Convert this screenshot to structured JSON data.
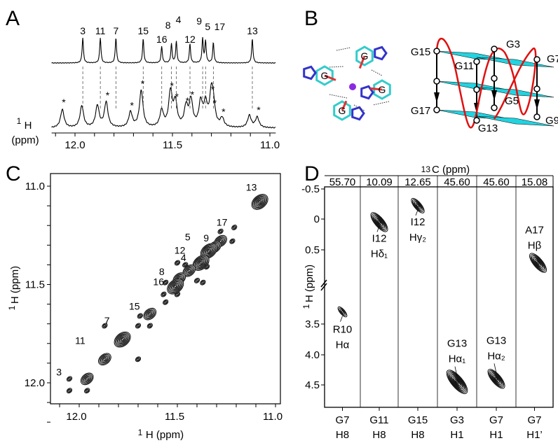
{
  "panels": {
    "a": "A",
    "b": "B",
    "c": "C",
    "d": "D"
  },
  "colors": {
    "line": "#000000",
    "helix": "#e01010",
    "plane": "#22d3e0",
    "carbon": "#33cccc",
    "nitrogen": "#3333cc",
    "oxygen": "#e03333",
    "ion": "#8a2be2"
  },
  "chart_data": [
    {
      "panel": "A",
      "type": "line",
      "xlabel_sup": "1",
      "xlabel_main": "H",
      "xlabel_unit": "(ppm)",
      "xlim": [
        12.12,
        10.97
      ],
      "xticks": [
        "12.0",
        "11.5",
        "11.0"
      ],
      "xtick_values": [
        12.0,
        11.5,
        11.0
      ],
      "top_spectrum": {
        "peaks": [
          {
            "label": "3",
            "ppm": 11.96,
            "h": 1.0
          },
          {
            "label": "11",
            "ppm": 11.87,
            "h": 1.0
          },
          {
            "label": "7",
            "ppm": 11.79,
            "h": 1.0
          },
          {
            "label": "15",
            "ppm": 11.65,
            "h": 0.95
          },
          {
            "label": "16",
            "ppm": 11.555,
            "h": 0.65
          },
          {
            "label": "8",
            "ppm": 11.505,
            "h": 0.75
          },
          {
            "label": "4",
            "ppm": 11.48,
            "h": 0.85
          },
          {
            "label": "12",
            "ppm": 11.41,
            "h": 0.75
          },
          {
            "label": "9",
            "ppm": 11.345,
            "h": 0.95
          },
          {
            "label": "5",
            "ppm": 11.33,
            "h": 0.85
          },
          {
            "label": "17",
            "ppm": 11.29,
            "h": 0.8
          },
          {
            "label": "13",
            "ppm": 11.09,
            "h": 0.95
          }
        ]
      },
      "bottom_spectrum": {
        "peaks": [
          {
            "ppm": 12.065,
            "h": 0.42,
            "star": true
          },
          {
            "ppm": 11.965,
            "h": 0.5,
            "star": false
          },
          {
            "ppm": 11.885,
            "h": 0.5,
            "star": false
          },
          {
            "ppm": 11.84,
            "h": 0.58,
            "star": true
          },
          {
            "ppm": 11.715,
            "h": 0.35,
            "star": true
          },
          {
            "ppm": 11.66,
            "h": 0.85,
            "star": true
          },
          {
            "ppm": 11.555,
            "h": 0.38,
            "star": false
          },
          {
            "ppm": 11.51,
            "h": 0.8,
            "star": true
          },
          {
            "ppm": 11.485,
            "h": 0.55,
            "star": true
          },
          {
            "ppm": 11.43,
            "h": 0.45,
            "star": true
          },
          {
            "ppm": 11.405,
            "h": 0.6,
            "star": true
          },
          {
            "ppm": 11.355,
            "h": 0.55,
            "star": false
          },
          {
            "ppm": 11.33,
            "h": 0.5,
            "star": false
          },
          {
            "ppm": 11.3,
            "h": 0.72,
            "star": true
          },
          {
            "ppm": 11.29,
            "h": 0.4,
            "star": true
          },
          {
            "ppm": 11.245,
            "h": 0.2,
            "star": true
          },
          {
            "ppm": 11.105,
            "h": 0.28,
            "star": false
          },
          {
            "ppm": 11.065,
            "h": 0.24,
            "star": true
          }
        ],
        "star_symbol": "*"
      }
    },
    {
      "panel": "C",
      "type": "scatter",
      "xlabel": "H (ppm)",
      "ylabel": "H (ppm)",
      "label_sup": "1",
      "xlim": [
        12.12,
        10.95
      ],
      "ylim": [
        10.97,
        12.21
      ],
      "xticks": [
        "12.0",
        "11.5",
        "11.0"
      ],
      "xtick_values": [
        12.0,
        11.5,
        11.0
      ],
      "yticks": [
        "11.0",
        "11.5",
        "12.0"
      ],
      "ytick_values": [
        11.0,
        11.5,
        12.0
      ],
      "diagonal_peaks": [
        {
          "label": "13",
          "x": 11.08,
          "y": 11.08,
          "size": 3
        },
        {
          "label": "17",
          "x": 11.28,
          "y": 11.28,
          "size": 2
        },
        {
          "label": "9",
          "x": 11.31,
          "y": 11.31,
          "size": 2
        },
        {
          "label": "5",
          "x": 11.34,
          "y": 11.33,
          "size": 3
        },
        {
          "label": "12",
          "x": 11.38,
          "y": 11.39,
          "size": 3
        },
        {
          "label": "4",
          "x": 11.44,
          "y": 11.43,
          "size": 2
        },
        {
          "label": "8",
          "x": 11.49,
          "y": 11.47,
          "size": 2
        },
        {
          "label": "16",
          "x": 11.51,
          "y": 11.51,
          "size": 3
        },
        {
          "label": "15",
          "x": 11.64,
          "y": 11.65,
          "size": 2
        },
        {
          "label": "7",
          "x": 11.78,
          "y": 11.78,
          "size": 3
        },
        {
          "label": "11",
          "x": 11.87,
          "y": 11.88,
          "size": 2
        },
        {
          "label": "3",
          "x": 11.96,
          "y": 11.98,
          "size": 2
        }
      ],
      "cross_peaks": [
        {
          "x": 11.87,
          "y": 11.71
        },
        {
          "x": 12.05,
          "y": 11.98
        },
        {
          "x": 12.05,
          "y": 12.04
        },
        {
          "x": 11.96,
          "y": 12.04
        },
        {
          "x": 11.7,
          "y": 11.88
        },
        {
          "x": 11.7,
          "y": 11.71
        },
        {
          "x": 11.64,
          "y": 11.71
        },
        {
          "x": 11.69,
          "y": 11.66
        },
        {
          "x": 11.56,
          "y": 11.59
        },
        {
          "x": 11.56,
          "y": 11.49
        },
        {
          "x": 11.5,
          "y": 11.55
        },
        {
          "x": 11.5,
          "y": 11.39
        },
        {
          "x": 11.46,
          "y": 11.4
        },
        {
          "x": 11.4,
          "y": 11.48
        },
        {
          "x": 11.37,
          "y": 11.49
        },
        {
          "x": 11.35,
          "y": 11.41
        },
        {
          "x": 11.22,
          "y": 11.28
        },
        {
          "x": 11.21,
          "y": 11.21
        },
        {
          "x": 11.28,
          "y": 11.23
        },
        {
          "x": 11.57,
          "y": 11.55
        }
      ]
    },
    {
      "panel": "D",
      "type": "scatter",
      "top_label_sup": "13",
      "top_label": "C (ppm)",
      "ylabel_sup": "1",
      "ylabel": "H (ppm)",
      "yticks": [
        "-0.5",
        "0",
        "0.5",
        "3.5",
        "4.0",
        "4.5"
      ],
      "columns": [
        {
          "c13": "55.70",
          "xlabel": [
            "G7",
            "H8"
          ],
          "peak_h": 3.3,
          "peak_label": [
            "R10",
            "Hα"
          ],
          "size": 1
        },
        {
          "c13": "10.09",
          "xlabel": [
            "G11",
            "H8"
          ],
          "peak_h": 0.05,
          "peak_label": [
            "I12",
            "Hδ₁"
          ],
          "size": 3
        },
        {
          "c13": "12.65",
          "xlabel": [
            "G15",
            "H8"
          ],
          "peak_h": -0.22,
          "peak_label": [
            "I12",
            "Hγ₂"
          ],
          "size": 2
        },
        {
          "c13": "45.60",
          "xlabel": [
            "G3",
            "H1"
          ],
          "peak_h": 4.45,
          "peak_label": [
            "G13",
            "Hα₁"
          ],
          "size": 4
        },
        {
          "c13": "45.60",
          "xlabel": [
            "G7",
            "H1"
          ],
          "peak_h": 4.4,
          "peak_label": [
            "G13",
            "Hα₂"
          ],
          "size": 3
        },
        {
          "c13": "15.08",
          "xlabel": [
            "G7",
            "H1’"
          ],
          "peak_h": 0.72,
          "peak_label": [
            "A17",
            "Hβ"
          ],
          "size": 3
        }
      ]
    }
  ],
  "panel_b": {
    "quartet_bases": [
      "G",
      "G",
      "G",
      "G"
    ],
    "topology_labels": [
      "G15",
      "G3",
      "G7",
      "G11",
      "G5",
      "G17",
      "G13",
      "G9"
    ]
  }
}
